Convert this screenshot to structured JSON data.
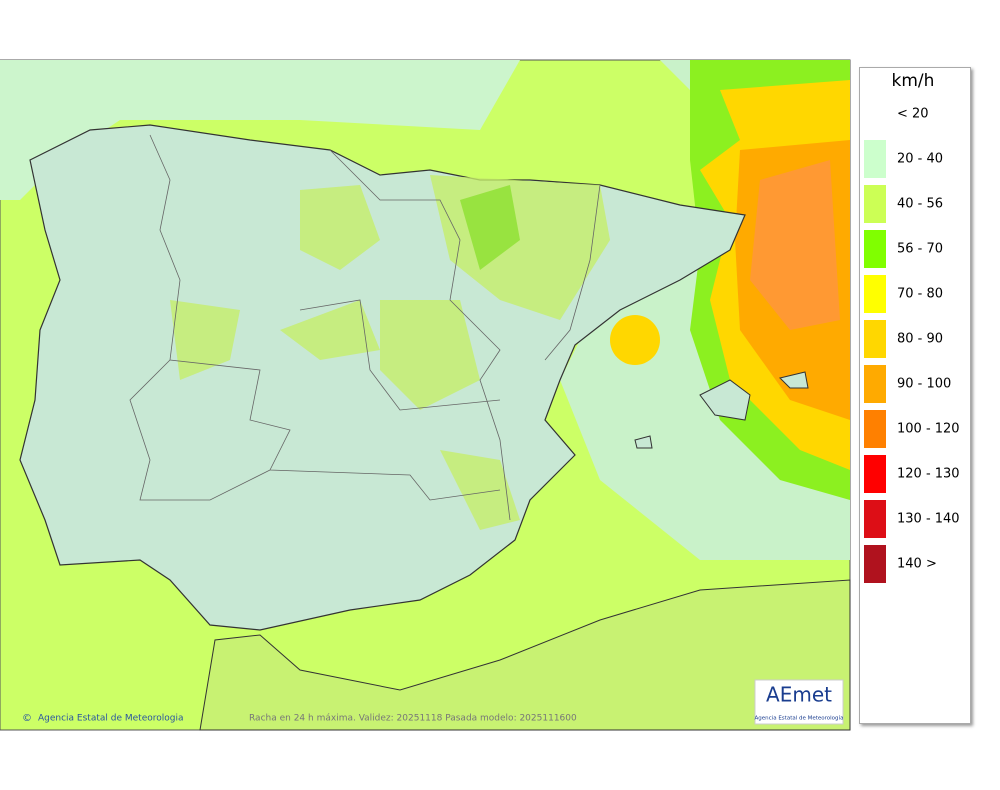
{
  "map": {
    "footer_left": "Agencia Estatal de Meteorologia",
    "copyright": "©",
    "footer_center": "Racha en 24 h máxima. Validez: 20251118 Pasada modelo: 2025111600",
    "logo_text": "AEmet",
    "logo_subtitle": "Agencia Estatal de Meteorología"
  },
  "legend": {
    "unit": "km/h",
    "items": [
      {
        "label": "< 20",
        "color": "#ffffff"
      },
      {
        "label": "20 - 40",
        "color": "#ccffcc"
      },
      {
        "label": "40 - 56",
        "color": "#ccff55"
      },
      {
        "label": "56 - 70",
        "color": "#80ff00"
      },
      {
        "label": "70 - 80",
        "color": "#ffff00"
      },
      {
        "label": "80 - 90",
        "color": "#ffd700"
      },
      {
        "label": "90 - 100",
        "color": "#ffaa00"
      },
      {
        "label": "100 - 120",
        "color": "#ff8000"
      },
      {
        "label": "120 - 130",
        "color": "#ff0000"
      },
      {
        "label": "130 - 140",
        "color": "#dd0e16"
      },
      {
        "label": "140 >",
        "color": "#b0121e"
      }
    ]
  }
}
